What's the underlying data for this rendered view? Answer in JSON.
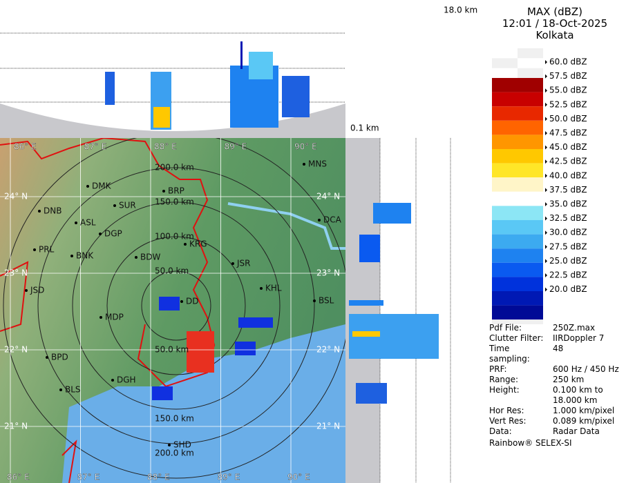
{
  "header": {
    "title": "MAX (dBZ)",
    "datetime": "12:01 / 18-Oct-2025",
    "station": "Kolkata"
  },
  "profile": {
    "top_height": "18.0 km",
    "bottom_height": "0.1 km"
  },
  "legend": {
    "labels": [
      "60.0 dBZ",
      "57.5 dBZ",
      "55.0 dBZ",
      "52.5 dBZ",
      "50.0 dBZ",
      "47.5 dBZ",
      "45.0 dBZ",
      "42.5 dBZ",
      "40.0 dBZ",
      "37.5 dBZ",
      "35.0 dBZ",
      "32.5 dBZ",
      "30.0 dBZ",
      "27.5 dBZ",
      "25.0 dBZ",
      "22.5 dBZ",
      "20.0 dBZ"
    ],
    "colors": [
      "#a00000",
      "#c80000",
      "#e82800",
      "#ff6400",
      "#ff9600",
      "#ffc800",
      "#ffe628",
      "#fff5c8",
      "#ffffff",
      "#8ce6f5",
      "#5ac8f5",
      "#3caaf0",
      "#1e82f0",
      "#0a5af0",
      "#0032dc",
      "#0019b4",
      "#000a96"
    ]
  },
  "info": {
    "rows": [
      [
        "Pdf File:",
        "250Z.max"
      ],
      [
        "Clutter Filter:",
        "IIRDoppler 7"
      ],
      [
        "Time sampling:",
        "48"
      ],
      [
        "PRF:",
        "600 Hz / 450 Hz"
      ],
      [
        "Range:",
        "250 km"
      ],
      [
        "Height:",
        "0.100 km to 18.000 km"
      ],
      [
        "Hor Res:",
        "1.000 km/pixel"
      ],
      [
        "Vert Res:",
        "0.089 km/pixel"
      ],
      [
        "Data:",
        "Radar Data"
      ]
    ],
    "footer": "Rainbow® SELEX-SI"
  },
  "map": {
    "longitudes": [
      "86° E",
      "87° E",
      "88° E",
      "89° E",
      "90° E"
    ],
    "latitudes": [
      "24° N",
      "23° N",
      "22° N",
      "21° N"
    ],
    "range_rings": [
      "50.0 km",
      "100.0 km",
      "150.0 km",
      "200.0 km"
    ],
    "cities": [
      "MNS",
      "DMK",
      "BRP",
      "SUR",
      "DNB",
      "ASL",
      "DGP",
      "DCA",
      "KRG",
      "PRL",
      "BNK",
      "BDW",
      "JSR",
      "KHL",
      "JSD",
      "DD",
      "BSL",
      "MDP",
      "BPD",
      "DGH",
      "BLS",
      "SHD"
    ]
  }
}
